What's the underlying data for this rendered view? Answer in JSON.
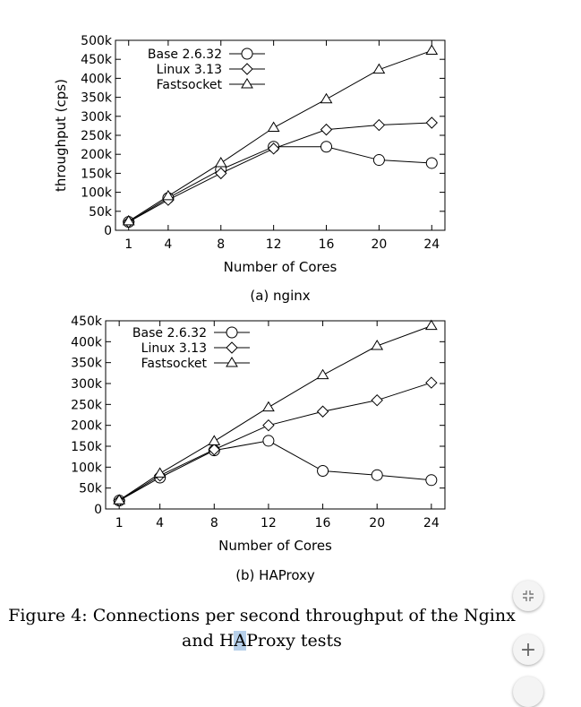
{
  "chart_data": [
    {
      "type": "line",
      "subcaption": "(a) nginx",
      "xlabel": "Number of Cores",
      "ylabel": "throughput (cps)",
      "x": [
        1,
        4,
        8,
        12,
        16,
        20,
        24
      ],
      "xticks": [
        "1",
        "4",
        "8",
        "12",
        "16",
        "20",
        "24"
      ],
      "yticks": [
        "0",
        "50k",
        "100k",
        "150k",
        "200k",
        "250k",
        "300k",
        "350k",
        "400k",
        "450k",
        "500k"
      ],
      "ylim": [
        0,
        500000
      ],
      "legend_position": "top-left",
      "series": [
        {
          "name": "Base 2.6.32",
          "marker": "circle",
          "values": [
            22000,
            85000,
            160000,
            220000,
            220000,
            185000,
            177000
          ]
        },
        {
          "name": "Linux 3.13",
          "marker": "diamond",
          "values": [
            22000,
            80000,
            150000,
            215000,
            265000,
            277000,
            283000
          ]
        },
        {
          "name": "Fastsocket",
          "marker": "triangle",
          "values": [
            24000,
            90000,
            177000,
            270000,
            345000,
            423000,
            473000
          ]
        }
      ]
    },
    {
      "type": "line",
      "subcaption": "(b) HAProxy",
      "xlabel": "Number of Cores",
      "ylabel": "",
      "x": [
        1,
        4,
        8,
        12,
        16,
        20,
        24
      ],
      "xticks": [
        "1",
        "4",
        "8",
        "12",
        "16",
        "20",
        "24"
      ],
      "yticks": [
        "0",
        "50k",
        "100k",
        "150k",
        "200k",
        "250k",
        "300k",
        "350k",
        "400k",
        "450k"
      ],
      "ylim": [
        0,
        450000
      ],
      "legend_position": "top-left",
      "series": [
        {
          "name": "Base 2.6.32",
          "marker": "circle",
          "values": [
            20000,
            75000,
            140000,
            163000,
            91000,
            81000,
            69000
          ]
        },
        {
          "name": "Linux 3.13",
          "marker": "diamond",
          "values": [
            20000,
            80000,
            142000,
            200000,
            233000,
            260000,
            302000
          ]
        },
        {
          "name": "Fastsocket",
          "marker": "triangle",
          "values": [
            21000,
            85000,
            162000,
            243000,
            320000,
            390000,
            438000
          ]
        }
      ]
    }
  ],
  "caption": {
    "line1": "Figure 4: Connections per second throughput of the Nginx",
    "line2_prefix": "and H",
    "line2_highlight": "A",
    "line2_suffix": "Proxy tests"
  },
  "controls": {
    "shrink_icon": "collapse-arrows-icon",
    "add_icon": "plus-icon",
    "add_label": "+"
  }
}
